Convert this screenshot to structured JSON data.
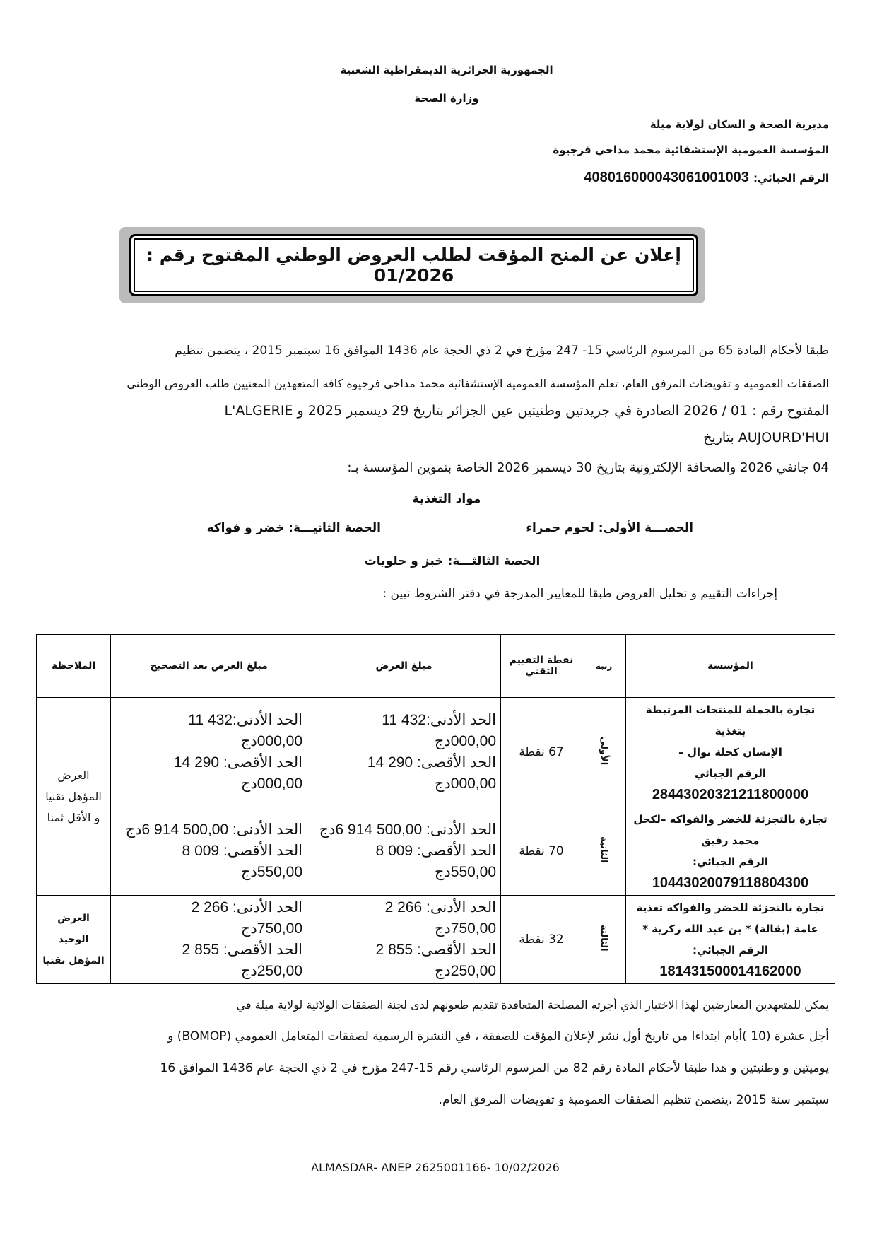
{
  "header": {
    "republic": "الجمهورية الجزائرية الديمقراطية الشعبية",
    "ministry": "وزارة الصحة",
    "directorate": "مديرية الصحة و السكان لولاية ميلة",
    "institution": "المؤسسة العمومية الإستشفائية محمد مداحي فرجيوة",
    "tax_id_label": "الرقم الجبائي:",
    "tax_id": "408016000043061001003"
  },
  "title": "إعلان عن المنح المؤقت لطلب العروض الوطني المفتوح رقم : 01/2026",
  "intro": {
    "line1": "طبقا لأحكام المادة 65 من المرسوم الرئاسي 15- 247 مؤرخ في 2 ذي الحجة عام 1436 الموافق 16 سبتمبر 2015 ، يتضمن تنظيم",
    "line2": "الصفقات العمومية و تفويضات المرفق العام، تعلم المؤسسة العمومية الإستشفائية محمد مداحي فرجيوة كافة المتعهدين المعنيين طلب العروض الوطني",
    "line3": "المفتوح رقم :     01 / 2026 الصادرة في جريدتين وطنيتين عين الجزائر بتاريخ 29 ديسمبر 2025 و L'ALGERIE",
    "line4": "AUJOURD'HUI بتاريخ",
    "line5": "04 جانفي 2026 والصحافة الإلكترونية بتاريخ 30 ديسمبر 2026 الخاصة بتموين المؤسسة بـ:"
  },
  "subject": "مواد التغذية",
  "lots": {
    "lot1": "الحصـــة الأولى: لحوم حمراء",
    "lot2": "الحصة الثانيـــة: خضر و فواكه",
    "lot3": "الحصة الثالثـــة: خبز و حلويات"
  },
  "evaluation_intro": "إجراءات التقييم و تحليل العروض طبقا للمعايير المدرجة في دفتر الشروط تبين :",
  "table": {
    "headers": {
      "institution": "المؤسسة",
      "rank": "رتبة",
      "technical_score": "نقطة التقييم التقني",
      "offer_amount": "مبلغ العرض",
      "corrected_amount": "مبلغ العرض بعد التصحيح",
      "remark": "الملاحظة"
    },
    "rows": [
      {
        "institution_lines": [
          "تجارة بالجملة للمنتجات المرتبطة بتغذية",
          "الإنسان كحلة نوال –",
          "الرقم الجبائي"
        ],
        "tax_id": "28443020321211800000",
        "rank": "الأولى",
        "score": "67 نقطة",
        "offer": [
          "الحد الأدنى:432 11",
          "000,00دج",
          "الحد الأقصى: 290 14",
          "000,00دج"
        ],
        "corrected": [
          "الحد الأدنى:432 11",
          "000,00دج",
          "الحد الأقصى: 290 14",
          "000,00دج"
        ]
      },
      {
        "institution_lines": [
          "تجارة بالتجزئة للخضر والفواكه –لكحل",
          "محمد رفيق",
          "الرقم الجبائي:"
        ],
        "tax_id": "10443020079118804300",
        "rank": "الثانية",
        "score": "70 نقطة",
        "offer": [
          "الحد الأدنى: 500,00 914 6دج",
          "الحد الأقصى: 009 8",
          "550,00دج"
        ],
        "corrected": [
          "الحد الأدنى: 500,00 914 6دج",
          "الحد الأقصى: 009 8",
          "550,00دج"
        ]
      },
      {
        "institution_lines": [
          "تجارة بالتجزئة للخضر والفواكه تغذية",
          "عامة (بقالة) * بن عبد الله زكرية *",
          "الرقم الجبائي:"
        ],
        "tax_id": "181431500014162000",
        "rank": "الثالثة",
        "score": "32 نقطة",
        "offer": [
          "الحد الأدنى:  266 2",
          "750,00دج",
          "الحد الأقصى: 855 2",
          "250,00دج"
        ],
        "corrected": [
          "الحد الأدنى:  266 2",
          "750,00دج",
          "الحد الأقصى: 855 2",
          "250,00دج"
        ]
      }
    ],
    "remarks": {
      "rows_1_2": [
        "العرض",
        "المؤهل تقنيا",
        "و الأقل ثمنا"
      ],
      "row_3": [
        "العرض الوحيد",
        "المؤهل تقنيا"
      ]
    }
  },
  "closing": {
    "line1": "يمكن للمتعهدين المعارضين لهذا الاختيار الذي أجرته المصلحة المتعاقدة تقديم طعونهم لدى لجنة الصفقات الولائية لولاية ميلة في",
    "line2": "أجل عشرة (10 )أيام ابتداءا من تاريخ أول نشر لإعلان المؤقت للصفقة ، في النشرة الرسمية لصفقات المتعامل العمومي (BOMOP) و",
    "line3": "يوميتين و وطنيتين و هذا طبقا لأحكام المادة رقم 82 من المرسوم الرئاسي رقم 15-247 مؤرخ في 2 ذي الحجة عام 1436 الموافق 16",
    "line4": "سبتمبر سنة 2015 ،يتضمن تنظيم الصفقات العمومية و تفويضات المرفق العام."
  },
  "footer": "ALMASDAR- ANEP 2625001166- 10/02/2026"
}
